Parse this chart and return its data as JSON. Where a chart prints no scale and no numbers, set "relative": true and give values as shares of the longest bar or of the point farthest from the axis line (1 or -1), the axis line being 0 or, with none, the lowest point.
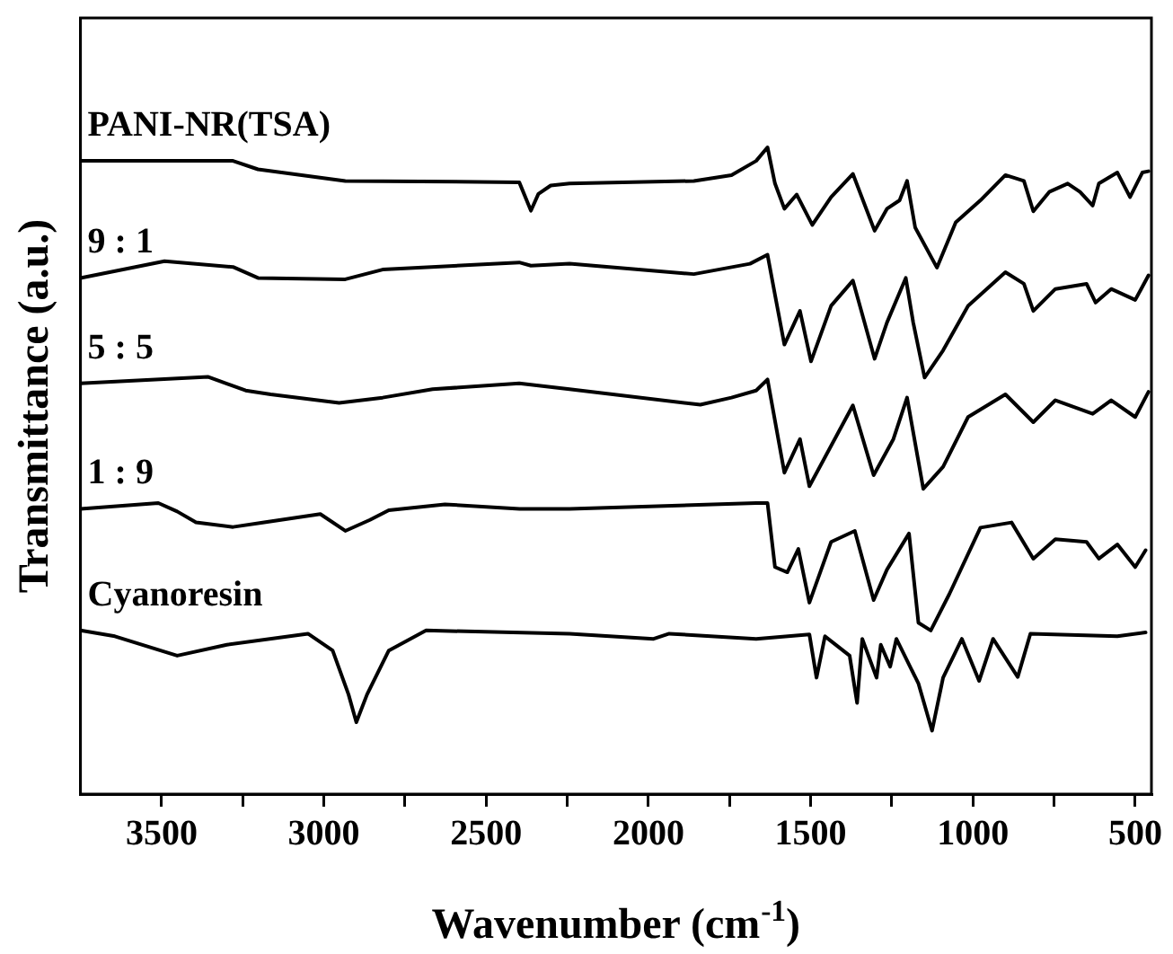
{
  "chart_data": {
    "type": "line",
    "relative": true,
    "xlabel": "Wavenumber (cm$^{-1}$)",
    "ylabel": "Transmittance (a.u.)",
    "xlim": [
      3750,
      450
    ],
    "xticks": [
      3500,
      {
        "value": 3250,
        "label": null
      },
      3000,
      {
        "value": 2750,
        "label": null
      },
      2500,
      {
        "value": 2250,
        "label": null
      },
      2000,
      {
        "value": 1750,
        "label": null
      },
      1500,
      {
        "value": 1250,
        "label": null
      },
      1000,
      {
        "value": 750,
        "label": null
      },
      500
    ],
    "grid": false,
    "legend": false,
    "marker": "none",
    "line_style": "solid",
    "series": [
      {
        "name": "PANI-NR(TSA)",
        "color": "#000000",
        "x": [
          3750,
          3280,
          3203,
          2934,
          2398,
          2362,
          2339,
          2301,
          2243,
          1860,
          1744,
          1668,
          1633,
          1610,
          1581,
          1543,
          1495,
          1437,
          1370,
          1303,
          1265,
          1226,
          1203,
          1178,
          1111,
          1053,
          977,
          900,
          843,
          814,
          765,
          708,
          670,
          631,
          612,
          555,
          516,
          478,
          459
        ],
        "values": [
          0.979,
          0.979,
          0.966,
          0.948,
          0.946,
          0.902,
          0.928,
          0.941,
          0.944,
          0.948,
          0.957,
          0.979,
          1.0,
          0.944,
          0.905,
          0.927,
          0.88,
          0.923,
          0.959,
          0.871,
          0.905,
          0.918,
          0.948,
          0.876,
          0.814,
          0.884,
          0.918,
          0.957,
          0.948,
          0.901,
          0.931,
          0.944,
          0.931,
          0.91,
          0.944,
          0.961,
          0.923,
          0.961,
          0.963
        ]
      },
      {
        "name": "9 : 1",
        "color": "#000000",
        "x": [
          3750,
          3491,
          3280,
          3203,
          2934,
          2819,
          2398,
          2362,
          2243,
          1860,
          1687,
          1633,
          1610,
          1581,
          1533,
          1499,
          1437,
          1370,
          1303,
          1265,
          1207,
          1184,
          1149,
          1092,
          1015,
          900,
          843,
          814,
          746,
          650,
          622,
          574,
          500,
          459
        ],
        "values": [
          0.798,
          0.824,
          0.815,
          0.798,
          0.796,
          0.811,
          0.822,
          0.817,
          0.82,
          0.804,
          0.82,
          0.834,
          0.772,
          0.695,
          0.747,
          0.669,
          0.755,
          0.794,
          0.673,
          0.729,
          0.798,
          0.729,
          0.644,
          0.686,
          0.755,
          0.807,
          0.789,
          0.747,
          0.781,
          0.789,
          0.76,
          0.781,
          0.764,
          0.802
        ]
      },
      {
        "name": "5 : 5",
        "color": "#000000",
        "x": [
          3750,
          3356,
          3241,
          3164,
          2953,
          2819,
          2665,
          2398,
          2243,
          1840,
          1744,
          1668,
          1633,
          1581,
          1533,
          1504,
          1370,
          1306,
          1245,
          1203,
          1153,
          1092,
          1015,
          900,
          814,
          746,
          631,
          574,
          500,
          459
        ],
        "values": [
          0.635,
          0.645,
          0.624,
          0.618,
          0.605,
          0.613,
          0.626,
          0.635,
          0.626,
          0.602,
          0.613,
          0.624,
          0.641,
          0.497,
          0.549,
          0.476,
          0.601,
          0.493,
          0.549,
          0.613,
          0.472,
          0.506,
          0.583,
          0.618,
          0.575,
          0.609,
          0.588,
          0.609,
          0.583,
          0.622
        ]
      },
      {
        "name": "1 : 9",
        "color": "#000000",
        "x": [
          3750,
          3510,
          3452,
          3394,
          3280,
          3184,
          3011,
          2934,
          2858,
          2800,
          2627,
          2397,
          2243,
          1668,
          1633,
          1610,
          1572,
          1538,
          1504,
          1437,
          1364,
          1306,
          1265,
          1197,
          1168,
          1130,
          1073,
          977,
          881,
          814,
          746,
          650,
          612,
          555,
          500,
          468
        ],
        "values": [
          0.441,
          0.45,
          0.437,
          0.42,
          0.413,
          0.42,
          0.433,
          0.407,
          0.424,
          0.439,
          0.448,
          0.441,
          0.441,
          0.45,
          0.45,
          0.351,
          0.343,
          0.379,
          0.296,
          0.39,
          0.407,
          0.3,
          0.347,
          0.403,
          0.265,
          0.253,
          0.309,
          0.412,
          0.42,
          0.364,
          0.394,
          0.39,
          0.364,
          0.386,
          0.351,
          0.377
        ]
      },
      {
        "name": "Cyanoresin",
        "color": "#000000",
        "x": [
          3750,
          3644,
          3452,
          3299,
          3049,
          2973,
          2924,
          2900,
          2867,
          2800,
          2685,
          2243,
          1984,
          1936,
          1668,
          1504,
          1482,
          1456,
          1380,
          1357,
          1341,
          1297,
          1284,
          1255,
          1236,
          1168,
          1126,
          1092,
          1034,
          981,
          938,
          862,
          823,
          555,
          468
        ],
        "values": [
          0.253,
          0.244,
          0.214,
          0.231,
          0.248,
          0.222,
          0.154,
          0.111,
          0.154,
          0.222,
          0.253,
          0.248,
          0.24,
          0.248,
          0.24,
          0.247,
          0.18,
          0.244,
          0.214,
          0.141,
          0.24,
          0.18,
          0.231,
          0.197,
          0.24,
          0.171,
          0.098,
          0.18,
          0.24,
          0.175,
          0.24,
          0.181,
          0.248,
          0.244,
          0.25
        ]
      }
    ]
  }
}
